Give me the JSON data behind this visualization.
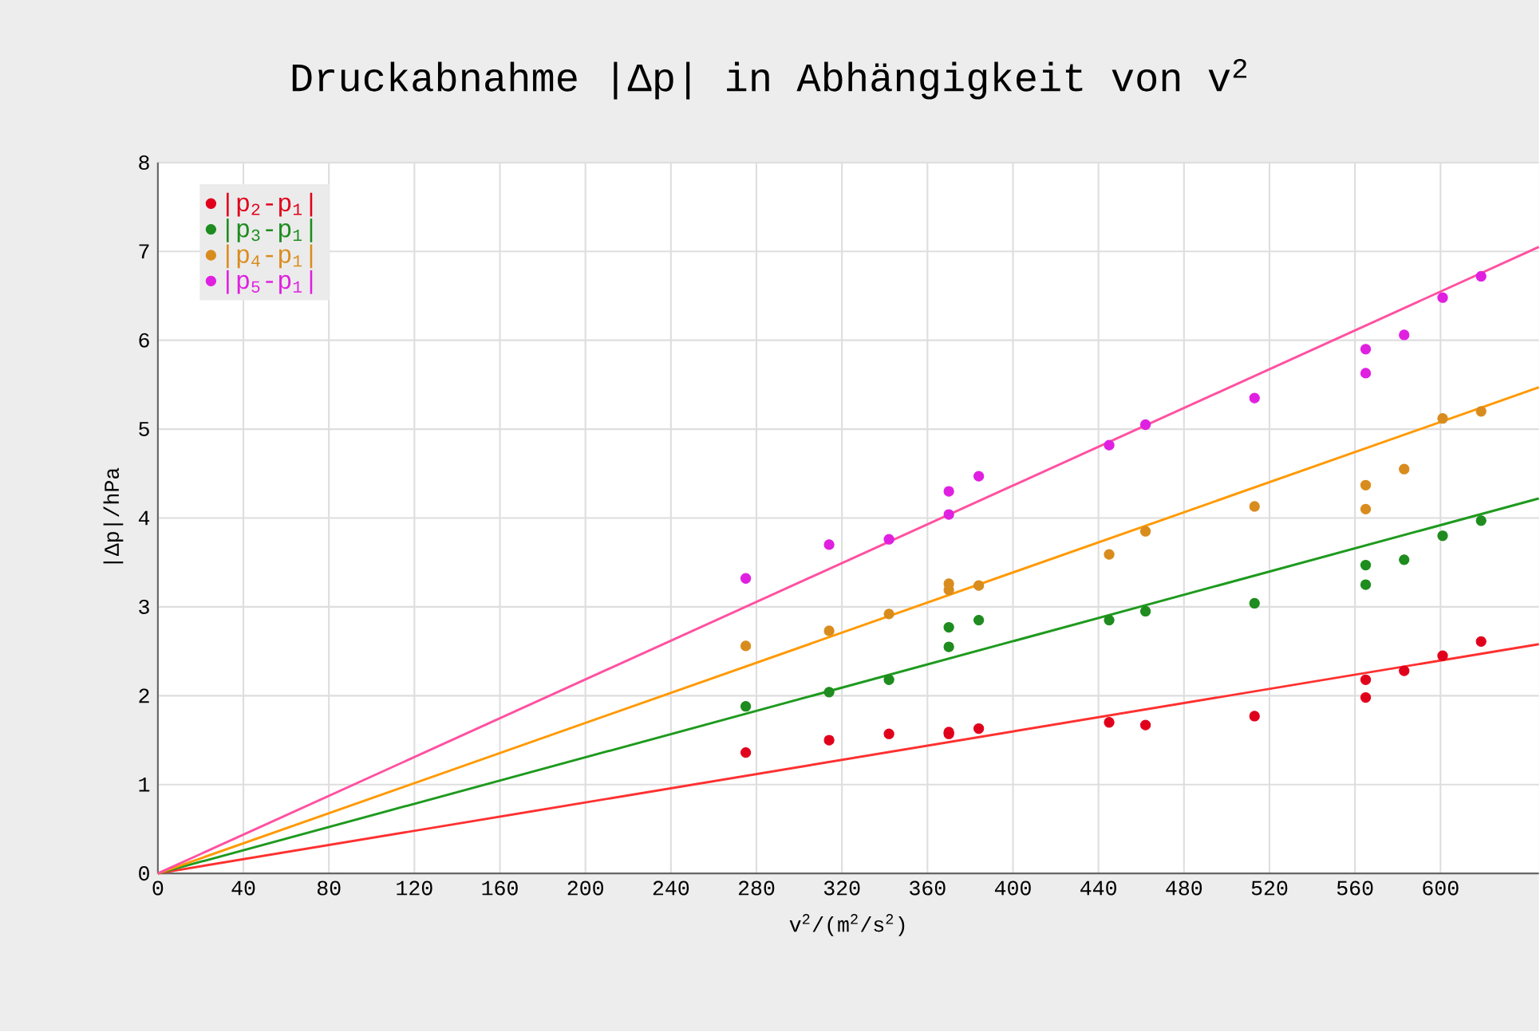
{
  "chart_data": {
    "type": "scatter",
    "title": "Druckabnahme |Δp| in Abhängigkeit von v$^{2}$",
    "xlabel": "v$^{2}$/(m$^{2}$/s$^{2}$)",
    "ylabel": "|Δp|/hPa",
    "xlim": [
      0,
      646
    ],
    "ylim": [
      0,
      8
    ],
    "xticks": [
      0,
      40,
      80,
      120,
      160,
      200,
      240,
      280,
      320,
      360,
      400,
      440,
      480,
      520,
      560,
      600
    ],
    "yticks": [
      0,
      1,
      2,
      3,
      4,
      5,
      6,
      7,
      8
    ],
    "grid": true,
    "legend": "top left",
    "series": [
      {
        "name": "|p$_{2}$-p$_{1}$|",
        "marker": "circle",
        "color": "#e0001c",
        "x": [
          275,
          314,
          342,
          370,
          370,
          384,
          445,
          462,
          513,
          565,
          565,
          583,
          601,
          619
        ],
        "values": [
          1.36,
          1.5,
          1.57,
          1.59,
          1.57,
          1.63,
          1.7,
          1.67,
          1.77,
          2.18,
          1.98,
          2.28,
          2.45,
          2.61
        ]
      },
      {
        "name": "|p$_{3}$-p$_{1}$|",
        "marker": "circle",
        "color": "#1e8c1e",
        "x": [
          275,
          314,
          342,
          370,
          370,
          384,
          445,
          462,
          513,
          565,
          565,
          583,
          601,
          619
        ],
        "values": [
          1.88,
          2.04,
          2.18,
          2.77,
          2.55,
          2.85,
          2.85,
          2.95,
          3.04,
          3.47,
          3.25,
          3.53,
          3.8,
          3.97
        ]
      },
      {
        "name": "|p$_{4}$-p$_{1}$|",
        "marker": "circle",
        "color": "#d98c1e",
        "x": [
          275,
          314,
          342,
          370,
          370,
          384,
          445,
          462,
          513,
          565,
          565,
          583,
          601,
          619
        ],
        "values": [
          2.56,
          2.73,
          2.92,
          3.26,
          3.19,
          3.24,
          3.59,
          3.85,
          4.13,
          4.37,
          4.1,
          4.55,
          5.12,
          5.2
        ]
      },
      {
        "name": "|p$_{5}$-p$_{1}$|",
        "marker": "circle",
        "color": "#e020e0",
        "x": [
          275,
          314,
          342,
          370,
          370,
          384,
          445,
          462,
          513,
          565,
          565,
          583,
          601,
          619
        ],
        "values": [
          3.32,
          3.7,
          3.76,
          4.3,
          4.04,
          4.47,
          4.82,
          5.05,
          5.35,
          5.9,
          5.63,
          6.06,
          6.48,
          6.72
        ]
      },
      {
        "type": "line",
        "marker": "none",
        "color": "#ff3030",
        "x": [
          0,
          646
        ],
        "values": [
          0,
          2.58
        ]
      },
      {
        "type": "line",
        "marker": "none",
        "color": "#1e9a1e",
        "x": [
          0,
          646
        ],
        "values": [
          0,
          4.22
        ]
      },
      {
        "type": "line",
        "marker": "none",
        "color": "#ff9900",
        "x": [
          0,
          646
        ],
        "values": [
          0,
          5.47
        ]
      },
      {
        "type": "line",
        "marker": "none",
        "color": "#ff50a0",
        "x": [
          0,
          646
        ],
        "values": [
          0,
          7.05
        ]
      }
    ]
  }
}
